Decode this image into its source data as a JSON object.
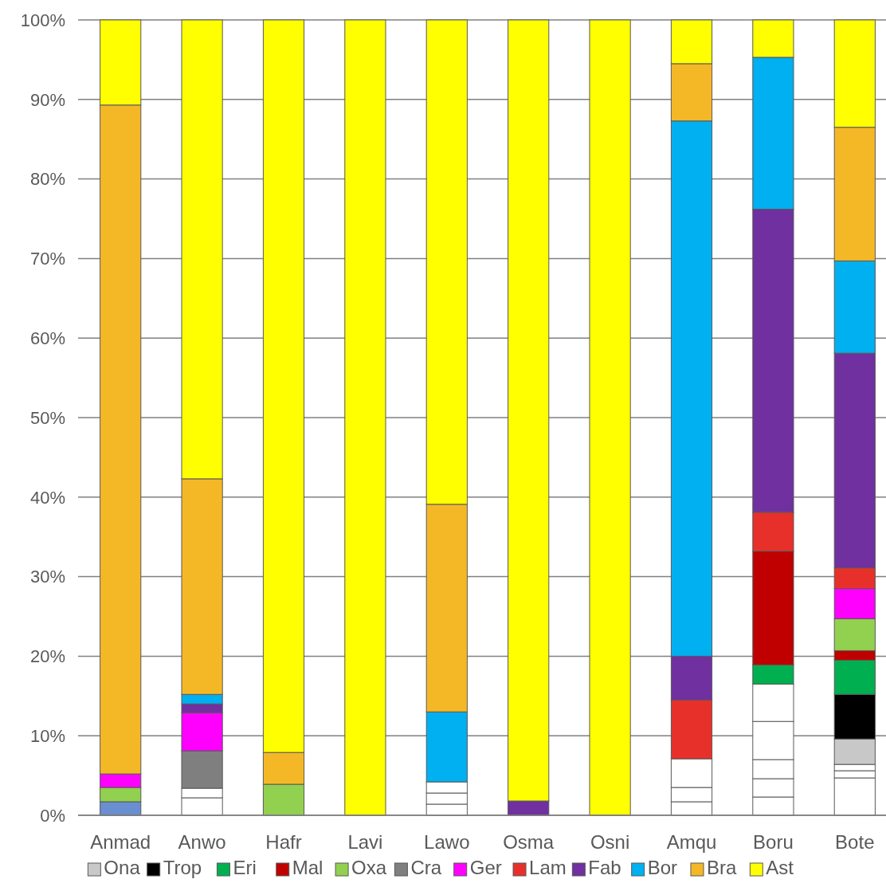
{
  "chart_data": {
    "type": "bar",
    "stacked": true,
    "categories": [
      "Anmad",
      "Anwo",
      "Hafr",
      "Lavi",
      "Lawo",
      "Osma",
      "Osni",
      "Amqu",
      "Boru",
      "Bote"
    ],
    "ylim": [
      0,
      100
    ],
    "yticks": [
      {
        "value": 0,
        "label": "0%"
      },
      {
        "value": 10,
        "label": "10%"
      },
      {
        "value": 20,
        "label": "20%"
      },
      {
        "value": 30,
        "label": "30%"
      },
      {
        "value": 40,
        "label": "40%"
      },
      {
        "value": 50,
        "label": "50%"
      },
      {
        "value": 60,
        "label": "60%"
      },
      {
        "value": 70,
        "label": "70%"
      },
      {
        "value": 80,
        "label": "80%"
      },
      {
        "value": 90,
        "label": "90%"
      },
      {
        "value": 100,
        "label": "100%"
      }
    ],
    "grid": "y",
    "legend": "bottom",
    "series": [
      {
        "color": "#6a8fd0",
        "values": [
          1.7,
          null,
          null,
          null,
          null,
          null,
          null,
          null,
          null,
          null
        ]
      },
      {
        "color": "#ffffff",
        "values": [
          null,
          2.2,
          null,
          null,
          1.4,
          null,
          null,
          1.7,
          2.3,
          4.7
        ]
      },
      {
        "color": "#ffffff",
        "values": [
          null,
          1.2,
          null,
          null,
          1.4,
          null,
          null,
          1.8,
          2.3,
          0.9
        ]
      },
      {
        "color": "#ffffff",
        "values": [
          null,
          null,
          null,
          null,
          1.4,
          null,
          null,
          3.6,
          2.4,
          0.8
        ]
      },
      {
        "color": "#ffffff",
        "values": [
          null,
          null,
          null,
          null,
          null,
          null,
          null,
          null,
          4.8,
          null
        ]
      },
      {
        "color": "#ffffff",
        "values": [
          null,
          null,
          null,
          null,
          null,
          null,
          null,
          null,
          4.7,
          null
        ]
      },
      {
        "name": "Ona",
        "color": "#c8c8c8",
        "values": [
          null,
          null,
          null,
          null,
          null,
          null,
          null,
          null,
          null,
          3.2
        ]
      },
      {
        "name": "Trop",
        "color": "#000000",
        "values": [
          null,
          null,
          null,
          null,
          null,
          null,
          null,
          null,
          null,
          5.6
        ]
      },
      {
        "name": "Eri",
        "color": "#00b050",
        "values": [
          null,
          null,
          null,
          null,
          null,
          null,
          null,
          null,
          2.4,
          4.3
        ]
      },
      {
        "name": "Mal",
        "color": "#c00000",
        "values": [
          null,
          null,
          null,
          null,
          null,
          null,
          null,
          null,
          14.3,
          1.2
        ]
      },
      {
        "name": "Oxa",
        "color": "#92d050",
        "values": [
          1.8,
          null,
          3.9,
          null,
          null,
          null,
          null,
          null,
          null,
          4.0
        ]
      },
      {
        "name": "Cra",
        "color": "#7f7f7f",
        "values": [
          null,
          4.7,
          null,
          null,
          null,
          null,
          null,
          null,
          null,
          null
        ]
      },
      {
        "name": "Ger",
        "color": "#ff00ff",
        "values": [
          1.7,
          4.8,
          null,
          null,
          null,
          null,
          null,
          null,
          null,
          3.8
        ]
      },
      {
        "name": "Lam",
        "color": "#e8302a",
        "values": [
          null,
          null,
          null,
          null,
          null,
          null,
          null,
          7.4,
          4.9,
          2.6
        ]
      },
      {
        "name": "Fab",
        "color": "#7030a0",
        "values": [
          null,
          1.1,
          null,
          null,
          null,
          1.8,
          null,
          5.5,
          38.1,
          27.0
        ]
      },
      {
        "name": "Bor",
        "color": "#00b0f0",
        "values": [
          null,
          1.2,
          null,
          null,
          8.8,
          null,
          null,
          67.3,
          19.1,
          11.6
        ]
      },
      {
        "name": "Bra",
        "color": "#f4b826",
        "values": [
          84.1,
          27.1,
          4.0,
          null,
          26.1,
          null,
          null,
          7.2,
          null,
          16.8
        ]
      },
      {
        "name": "Ast",
        "color": "#ffff00",
        "values": [
          10.7,
          57.7,
          92.1,
          100,
          60.9,
          98.2,
          100,
          5.5,
          4.7,
          13.5
        ]
      }
    ]
  }
}
